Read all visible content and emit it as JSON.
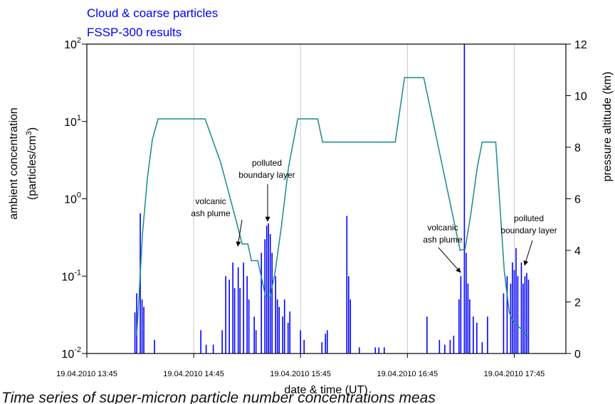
{
  "chart_data": {
    "type": "line",
    "title": [
      "Cloud & coarse particles",
      "FSSP-300 results"
    ],
    "xlabel": "date & time (UT)",
    "ylabel": [
      "ambient concentration",
      "(particles/cm",
      "3",
      ")"
    ],
    "y2label": "pressure altitude (km)",
    "caption": "Time series of super-micron particle number concentrations meas",
    "xlim": [
      825,
      1094
    ],
    "xticks": [
      {
        "value": 825,
        "label": "19.04.2010 13:45"
      },
      {
        "value": 885,
        "label": "19.04.2010 14:45"
      },
      {
        "value": 945,
        "label": "19.04.2010 15:45"
      },
      {
        "value": 1005,
        "label": "19.04.2010 16:45"
      },
      {
        "value": 1065,
        "label": "19.04.2010 17:45"
      }
    ],
    "ylog": true,
    "ylim": [
      0.01,
      100
    ],
    "yticks": [
      {
        "value": 0.01,
        "label": "10",
        "exponent": "-2"
      },
      {
        "value": 0.1,
        "label": "10",
        "exponent": "-1"
      },
      {
        "value": 1,
        "label": "10",
        "exponent": "0"
      },
      {
        "value": 10,
        "label": "10",
        "exponent": "1"
      },
      {
        "value": 100,
        "label": "10",
        "exponent": "2"
      }
    ],
    "y2lim": [
      0,
      12
    ],
    "y2ticks": [
      0,
      2,
      4,
      6,
      8,
      10,
      12
    ],
    "grid": true,
    "series": [
      {
        "color": "#0000ff",
        "style": "spikes",
        "x": [
          852,
          853,
          855,
          856,
          857,
          863,
          889,
          892,
          896,
          901,
          903,
          905,
          907,
          908,
          910,
          911,
          913,
          915,
          916,
          919,
          920,
          923,
          925,
          926,
          927,
          928,
          929,
          931,
          932,
          933,
          935,
          936,
          938,
          939,
          945,
          947,
          957,
          959,
          960,
          971,
          972,
          973,
          978,
          987,
          989,
          992,
          1016,
          1023,
          1026,
          1029,
          1031,
          1034,
          1035,
          1037,
          1038,
          1039,
          1040,
          1042,
          1044,
          1047,
          1050,
          1059,
          1061,
          1063,
          1064,
          1065,
          1066,
          1067,
          1069,
          1070,
          1071,
          1072,
          1073
        ],
        "values": [
          0.034,
          0.06,
          0.65,
          0.05,
          0.04,
          0.015,
          0.02,
          0.013,
          0.013,
          0.02,
          0.1,
          0.09,
          0.15,
          0.07,
          0.13,
          0.07,
          0.15,
          0.1,
          0.05,
          0.03,
          0.02,
          0.2,
          0.3,
          0.45,
          0.48,
          0.35,
          0.2,
          0.1,
          0.05,
          0.04,
          0.03,
          0.05,
          0.025,
          0.035,
          0.02,
          0.015,
          0.014,
          0.018,
          0.02,
          0.6,
          0.1,
          0.05,
          0.012,
          0.012,
          0.012,
          0.012,
          0.03,
          0.015,
          0.013,
          0.015,
          0.017,
          0.05,
          0.1,
          100,
          0.2,
          0.08,
          0.05,
          0.03,
          0.025,
          0.014,
          0.03,
          0.06,
          0.1,
          0.08,
          0.15,
          0.12,
          0.23,
          0.1,
          0.15,
          0.08,
          0.1,
          0.11,
          0.09
        ]
      },
      {
        "color": "#1a8a8a",
        "style": "line",
        "axis": "y2",
        "x": [
          853,
          854.2,
          856.2,
          859,
          861.8,
          865,
          891.4,
          900.2,
          909.4,
          912.2,
          915.4,
          917.4,
          921,
          925.4,
          927.8,
          930.6,
          934.2,
          938.2,
          943.4,
          954.6,
          957.4,
          998.2,
          1003.4,
          1014.2,
          1034.6,
          1037.4,
          1040.6,
          1044.2,
          1047,
          1054.6,
          1057,
          1059.4,
          1062.2,
          1065,
          1068.2,
          1070.4,
          1073
        ],
        "values": [
          0.7,
          2.1,
          4.6,
          6.8,
          8.3,
          9.1,
          9.1,
          7.4,
          5.0,
          4.25,
          4.25,
          3.6,
          3.6,
          2.2,
          2.2,
          3.1,
          4.9,
          7.2,
          9.1,
          9.1,
          8.2,
          8.2,
          10.7,
          10.7,
          4.0,
          4.05,
          5.4,
          7.2,
          8.2,
          8.2,
          5.7,
          3.2,
          1.6,
          1.15,
          1.0,
          0.8,
          0.6
        ]
      }
    ],
    "annotations": [
      {
        "lines": [
          "volcanic",
          "ash plume"
        ]
      },
      {
        "lines": [
          "polluted",
          "boundary layer"
        ]
      },
      {
        "lines": [
          "volcanic",
          "ash plume"
        ]
      },
      {
        "lines": [
          "polluted",
          "boundary layer"
        ]
      }
    ]
  }
}
